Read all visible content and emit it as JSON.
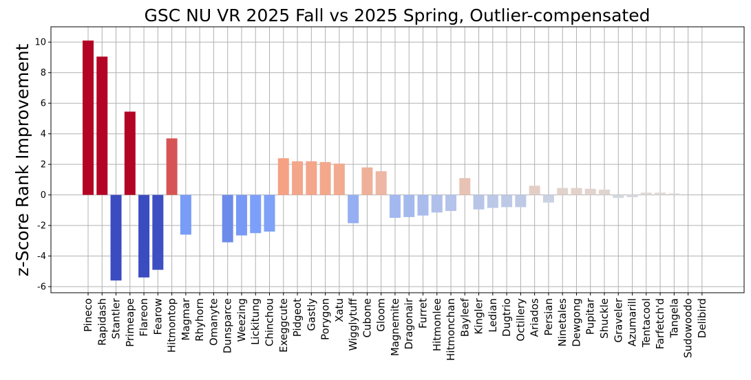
{
  "chart_data": {
    "type": "bar",
    "title": "GSC NU VR 2025 Fall vs 2025 Spring, Outlier-compensated",
    "ylabel": "z-Score Rank Improvement",
    "xlabel": "",
    "ylim": [
      -6.4,
      11.0
    ],
    "yticks": [
      -6,
      -4,
      -2,
      0,
      2,
      4,
      6,
      8,
      10
    ],
    "grid": true,
    "colormap": "coolwarm",
    "color_range": [
      -5.0,
      5.0
    ],
    "categories": [
      "Pineco",
      "Rapidash",
      "Stantler",
      "Primeape",
      "Flareon",
      "Fearow",
      "Hitmontop",
      "Magmar",
      "Rhyhorn",
      "Omanyte",
      "Dunsparce",
      "Weezing",
      "Lickitung",
      "Chinchou",
      "Exeggcute",
      "Pidgeot",
      "Gastly",
      "Porygon",
      "Xatu",
      "Wigglytuff",
      "Cubone",
      "Gloom",
      "Magnemite",
      "Dragonair",
      "Furret",
      "Hitmonlee",
      "Hitmonchan",
      "Bayleef",
      "Kingler",
      "Ledian",
      "Dugtrio",
      "Octillery",
      "Ariados",
      "Persian",
      "Ninetales",
      "Dewgong",
      "Pupitar",
      "Shuckle",
      "Graveler",
      "Azumarill",
      "Tentacool",
      "Farfetch'd",
      "Tangela",
      "Sudowoodo",
      "Delibird"
    ],
    "values": [
      10.1,
      9.05,
      -5.6,
      5.45,
      -5.4,
      -4.9,
      3.7,
      -2.6,
      0.0,
      0.0,
      -3.1,
      -2.65,
      -2.5,
      -2.4,
      2.4,
      2.2,
      2.2,
      2.15,
      2.05,
      -1.85,
      1.8,
      1.55,
      -1.5,
      -1.45,
      -1.35,
      -1.15,
      -1.05,
      1.1,
      -0.95,
      -0.85,
      -0.8,
      -0.8,
      0.6,
      -0.5,
      0.45,
      0.45,
      0.4,
      0.35,
      -0.2,
      -0.15,
      0.15,
      0.15,
      0.1,
      0.0,
      0.0
    ]
  }
}
